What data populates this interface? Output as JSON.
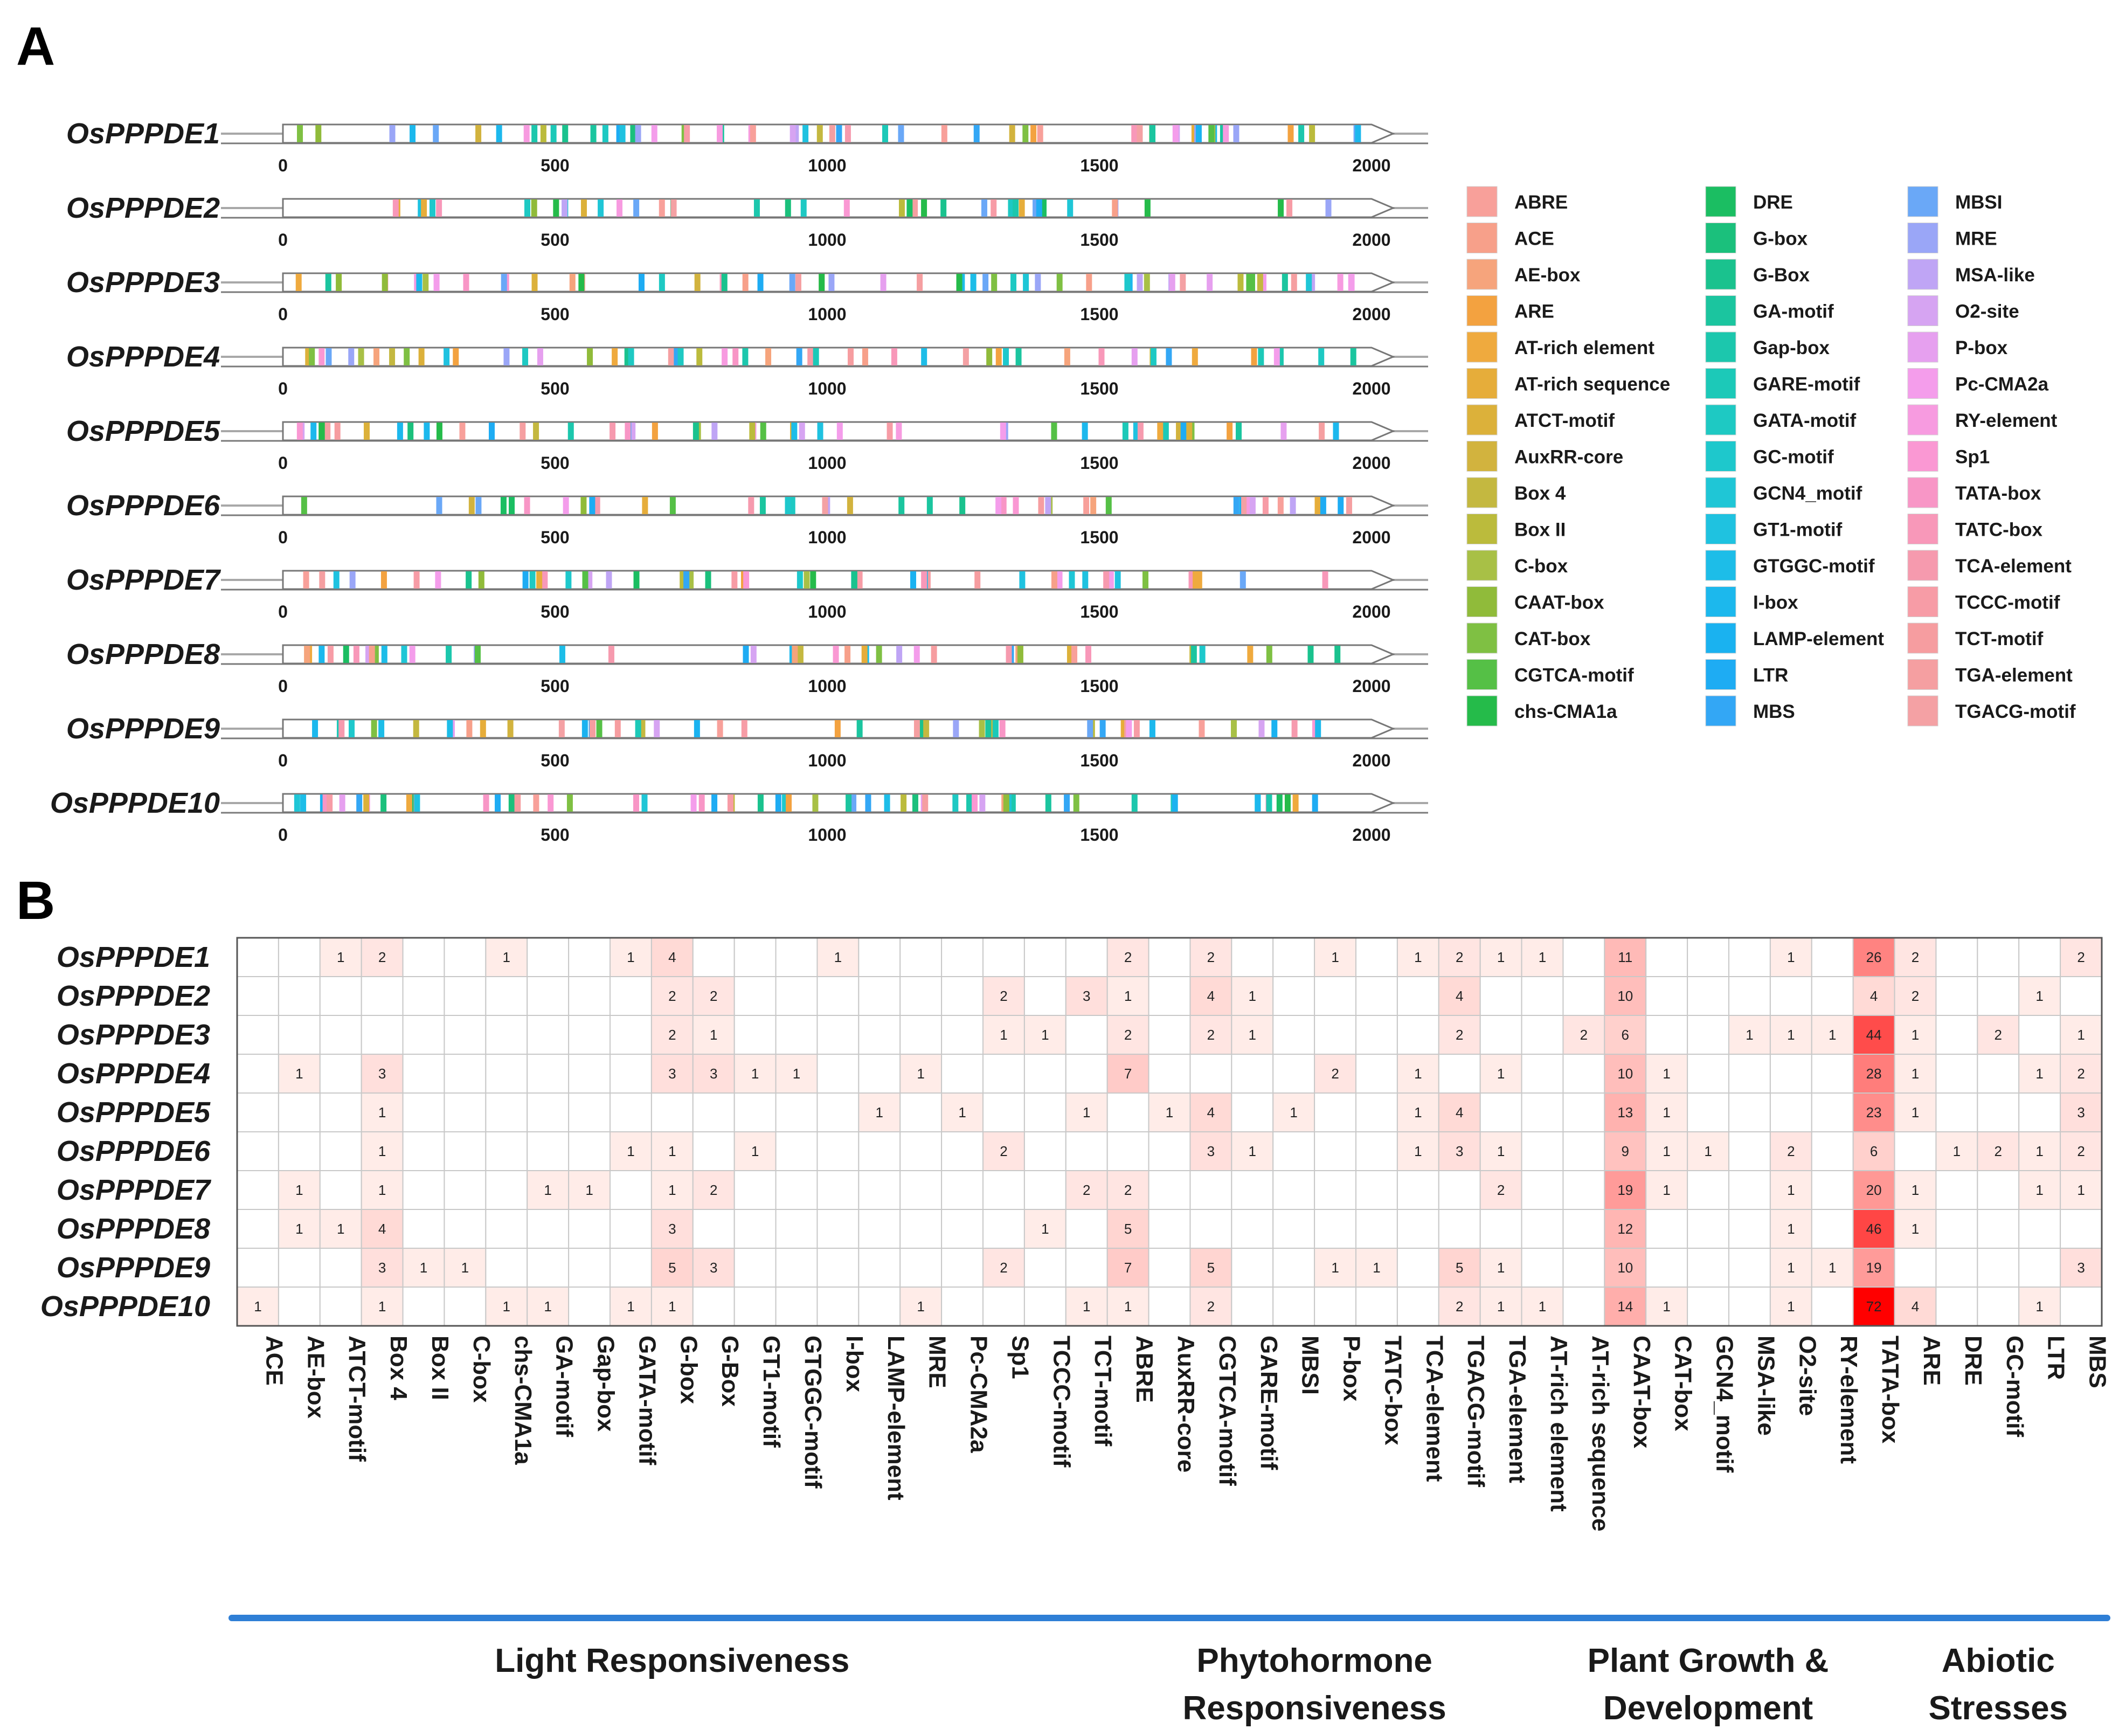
{
  "panel_labels": {
    "a": "A",
    "b": "B"
  },
  "chart_data": [
    {
      "type": "motif_map",
      "panel": "A",
      "genes": [
        "OsPPPDE1",
        "OsPPPDE2",
        "OsPPPDE3",
        "OsPPPDE4",
        "OsPPPDE5",
        "OsPPPDE6",
        "OsPPPDE7",
        "OsPPPDE8",
        "OsPPPDE9",
        "OsPPPDE10"
      ],
      "xlim": [
        0,
        2000
      ],
      "x_ticks": [
        0,
        500,
        1000,
        1500,
        2000
      ],
      "legend": [
        {
          "name": "ABRE",
          "color": "#f8a09a"
        },
        {
          "name": "ACE",
          "color": "#f7a08a"
        },
        {
          "name": "AE-box",
          "color": "#f6a47c"
        },
        {
          "name": "ARE",
          "color": "#f3a240"
        },
        {
          "name": "AT-rich element",
          "color": "#efaa3e"
        },
        {
          "name": "AT-rich sequence",
          "color": "#e6ad3a"
        },
        {
          "name": "ATCT-motif",
          "color": "#dcb13a"
        },
        {
          "name": "AuxRR-core",
          "color": "#d2b33e"
        },
        {
          "name": "Box 4",
          "color": "#c4b840"
        },
        {
          "name": "Box II",
          "color": "#bbbb3c"
        },
        {
          "name": "C-box",
          "color": "#a8c046"
        },
        {
          "name": "CAAT-box",
          "color": "#90bb3a"
        },
        {
          "name": "CAT-box",
          "color": "#7fc043"
        },
        {
          "name": "CGTCA-motif",
          "color": "#55c046"
        },
        {
          "name": "chs-CMA1a",
          "color": "#25bb4a"
        },
        {
          "name": "DRE",
          "color": "#1bbe62"
        },
        {
          "name": "G-box",
          "color": "#1bc07c"
        },
        {
          "name": "G-Box",
          "color": "#1ac28e"
        },
        {
          "name": "GA-motif",
          "color": "#1bc59f"
        },
        {
          "name": "Gap-box",
          "color": "#1cc7ad"
        },
        {
          "name": "GARE-motif",
          "color": "#1cc9b8"
        },
        {
          "name": "GATA-motif",
          "color": "#1ec9c3"
        },
        {
          "name": "GC-motif",
          "color": "#1ec8cc"
        },
        {
          "name": "GCN4_motif",
          "color": "#1fc6d6"
        },
        {
          "name": "GT1-motif",
          "color": "#1fc2e0"
        },
        {
          "name": "GTGGC-motif",
          "color": "#1dbde8"
        },
        {
          "name": "I-box",
          "color": "#1cb8ed"
        },
        {
          "name": "LAMP-element",
          "color": "#1ab2f0"
        },
        {
          "name": "LTR",
          "color": "#1eacf3"
        },
        {
          "name": "MBS",
          "color": "#33a7f5"
        },
        {
          "name": "MBSI",
          "color": "#6aa8f7"
        },
        {
          "name": "MRE",
          "color": "#9aa6f7"
        },
        {
          "name": "MSA-like",
          "color": "#bfa5f5"
        },
        {
          "name": "O2-site",
          "color": "#d6a4f2"
        },
        {
          "name": "P-box",
          "color": "#e6a0ef"
        },
        {
          "name": "Pc-CMA2a",
          "color": "#f49deb"
        },
        {
          "name": "RY-element",
          "color": "#f79be0"
        },
        {
          "name": "Sp1",
          "color": "#fa98d3"
        },
        {
          "name": "TATA-box",
          "color": "#f896c6"
        },
        {
          "name": "TATC-box",
          "color": "#f898b9"
        },
        {
          "name": "TCA-element",
          "color": "#f69aae"
        },
        {
          "name": "TCCC-motif",
          "color": "#f79ca6"
        },
        {
          "name": "TCT-motif",
          "color": "#f69da0"
        },
        {
          "name": "TGA-element",
          "color": "#f59fa1"
        },
        {
          "name": "TGACG-motif",
          "color": "#f4a1a4"
        }
      ]
    },
    {
      "type": "heatmap",
      "panel": "B",
      "rows": [
        "OsPPPDE1",
        "OsPPPDE2",
        "OsPPPDE3",
        "OsPPPDE4",
        "OsPPPDE5",
        "OsPPPDE6",
        "OsPPPDE7",
        "OsPPPDE8",
        "OsPPPDE9",
        "OsPPPDE10"
      ],
      "columns": [
        "ACE",
        "AE-box",
        "ATCT-motif",
        "Box 4",
        "Box II",
        "C-box",
        "chs-CMA1a",
        "GA-motif",
        "Gap-box",
        "GATA-motif",
        "G-box",
        "G-Box",
        "GT1-motif",
        "GTGGC-motif",
        "I-box",
        "LAMP-element",
        "MRE",
        "Pc-CMA2a",
        "Sp1",
        "TCCC-motif",
        "TCT-motif",
        "ABRE",
        "AuxRR-core",
        "CGTCA-motif",
        "GARE-motif",
        "MBSI",
        "P-box",
        "TATC-box",
        "TCA-element",
        "TGACG-motif",
        "TGA-element",
        "AT-rich element",
        "AT-rich sequence",
        "CAAT-box",
        "CAT-box",
        "GCN4_motif",
        "MSA-like",
        "O2-site",
        "RY-element",
        "TATA-box",
        "ARE",
        "DRE",
        "GC-motif",
        "LTR",
        "MBS"
      ],
      "values": [
        [
          0,
          0,
          1,
          2,
          0,
          0,
          1,
          0,
          0,
          1,
          4,
          0,
          0,
          0,
          1,
          0,
          0,
          0,
          0,
          0,
          0,
          2,
          0,
          2,
          0,
          0,
          1,
          0,
          1,
          2,
          1,
          1,
          0,
          11,
          0,
          0,
          0,
          1,
          0,
          26,
          2,
          0,
          0,
          0,
          2
        ],
        [
          0,
          0,
          0,
          0,
          0,
          0,
          0,
          0,
          0,
          0,
          2,
          2,
          0,
          0,
          0,
          0,
          0,
          0,
          2,
          0,
          3,
          1,
          0,
          4,
          1,
          0,
          0,
          0,
          0,
          4,
          0,
          0,
          0,
          10,
          0,
          0,
          0,
          0,
          0,
          4,
          2,
          0,
          0,
          1,
          0
        ],
        [
          0,
          0,
          0,
          0,
          0,
          0,
          0,
          0,
          0,
          0,
          2,
          1,
          0,
          0,
          0,
          0,
          0,
          0,
          1,
          1,
          0,
          2,
          0,
          2,
          1,
          0,
          0,
          0,
          0,
          2,
          0,
          0,
          2,
          6,
          0,
          0,
          1,
          1,
          1,
          44,
          1,
          0,
          2,
          0,
          1
        ],
        [
          0,
          1,
          0,
          3,
          0,
          0,
          0,
          0,
          0,
          0,
          3,
          3,
          1,
          1,
          0,
          0,
          1,
          0,
          0,
          0,
          0,
          7,
          0,
          0,
          0,
          0,
          2,
          0,
          1,
          0,
          1,
          0,
          0,
          10,
          1,
          0,
          0,
          0,
          0,
          28,
          1,
          0,
          0,
          1,
          2
        ],
        [
          0,
          0,
          0,
          1,
          0,
          0,
          0,
          0,
          0,
          0,
          0,
          0,
          0,
          0,
          0,
          1,
          0,
          1,
          0,
          0,
          1,
          0,
          1,
          4,
          0,
          1,
          0,
          0,
          1,
          4,
          0,
          0,
          0,
          13,
          1,
          0,
          0,
          0,
          0,
          23,
          1,
          0,
          0,
          0,
          3
        ],
        [
          0,
          0,
          0,
          1,
          0,
          0,
          0,
          0,
          0,
          1,
          1,
          0,
          1,
          0,
          0,
          0,
          0,
          0,
          2,
          0,
          0,
          0,
          0,
          3,
          1,
          0,
          0,
          0,
          1,
          3,
          1,
          0,
          0,
          9,
          1,
          1,
          0,
          2,
          0,
          6,
          0,
          1,
          2,
          1,
          2
        ],
        [
          0,
          1,
          0,
          1,
          0,
          0,
          0,
          1,
          1,
          0,
          1,
          2,
          0,
          0,
          0,
          0,
          0,
          0,
          0,
          0,
          2,
          2,
          0,
          0,
          0,
          0,
          0,
          0,
          0,
          0,
          2,
          0,
          0,
          19,
          1,
          0,
          0,
          1,
          0,
          20,
          1,
          0,
          0,
          1,
          1
        ],
        [
          0,
          1,
          1,
          4,
          0,
          0,
          0,
          0,
          0,
          0,
          3,
          0,
          0,
          0,
          0,
          0,
          0,
          0,
          0,
          1,
          0,
          5,
          0,
          0,
          0,
          0,
          0,
          0,
          0,
          0,
          0,
          0,
          0,
          12,
          0,
          0,
          0,
          1,
          0,
          46,
          1,
          0,
          0,
          0,
          0
        ],
        [
          0,
          0,
          0,
          3,
          1,
          1,
          0,
          0,
          0,
          0,
          5,
          3,
          0,
          0,
          0,
          0,
          0,
          0,
          2,
          0,
          0,
          7,
          0,
          5,
          0,
          0,
          1,
          1,
          0,
          5,
          1,
          0,
          0,
          10,
          0,
          0,
          0,
          1,
          1,
          19,
          0,
          0,
          0,
          0,
          3
        ],
        [
          1,
          0,
          0,
          1,
          0,
          0,
          1,
          1,
          0,
          1,
          1,
          0,
          0,
          0,
          0,
          0,
          1,
          0,
          0,
          0,
          1,
          1,
          0,
          2,
          0,
          0,
          0,
          0,
          0,
          2,
          1,
          1,
          0,
          14,
          1,
          0,
          0,
          1,
          0,
          72,
          4,
          0,
          0,
          1,
          0
        ]
      ],
      "color_scale": {
        "low": "#ffffff",
        "high": "#ff0000",
        "max": 72
      },
      "groups": [
        {
          "label_line1": "Light Responsiveness",
          "label_line2": "",
          "from": "ACE",
          "to": "TCT-motif"
        },
        {
          "label_line1": "Phytohormone",
          "label_line2": "Responsiveness",
          "from": "ABRE",
          "to": "TGA-element"
        },
        {
          "label_line1": "Plant Growth &",
          "label_line2": "Development",
          "from": "AT-rich element",
          "to": "TATA-box"
        },
        {
          "label_line1": "Abiotic",
          "label_line2": "Stresses",
          "from": "ARE",
          "to": "MBS"
        }
      ],
      "group_bar_color": "#2f7fd6"
    }
  ]
}
